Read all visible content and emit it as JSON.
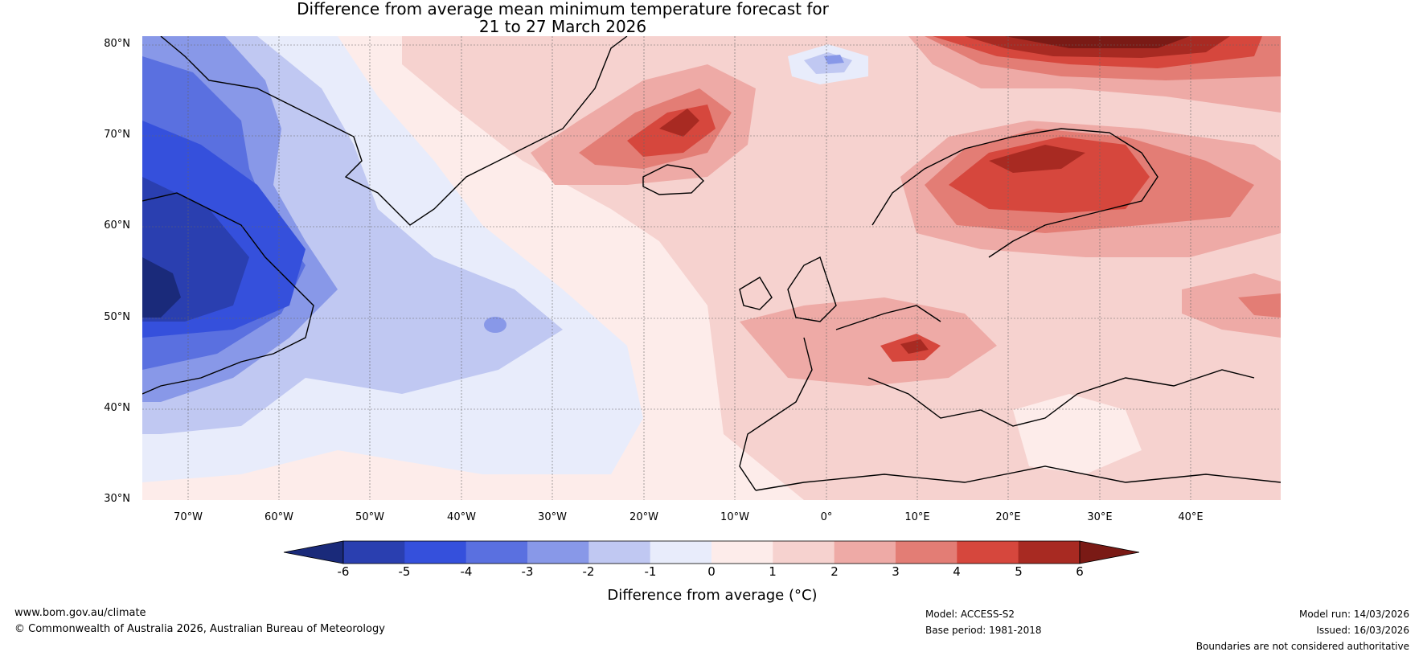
{
  "title_line1": "Difference from average mean minimum temperature forecast for",
  "title_line2": "21 to 27 March 2026",
  "lat_labels": [
    "80°N",
    "70°N",
    "60°N",
    "50°N",
    "40°N",
    "30°N"
  ],
  "lon_labels": [
    "70°W",
    "60°W",
    "50°W",
    "40°W",
    "30°W",
    "20°W",
    "10°W",
    "0°",
    "10°E",
    "20°E",
    "30°E",
    "40°E"
  ],
  "colorbar": {
    "ticks": [
      "-6",
      "-5",
      "-4",
      "-3",
      "-2",
      "-1",
      "0",
      "1",
      "2",
      "3",
      "4",
      "5",
      "6"
    ],
    "colors": [
      "#1a2a7a",
      "#2a3fb0",
      "#3550dc",
      "#5a70e0",
      "#8898e8",
      "#c0c8f2",
      "#e8ecfb",
      "#fdecea",
      "#f6d2cf",
      "#eeaaa6",
      "#e37d75",
      "#d6473d",
      "#a82a22",
      "#7a1a15"
    ],
    "label": "Difference from average (°C)"
  },
  "footer": {
    "website": "www.bom.gov.au/climate",
    "copyright": "© Commonwealth of Australia 2026, Australian Bureau of Meteorology",
    "model": "Model: ACCESS-S2",
    "base_period": "Base period: 1981-2018",
    "model_run": "Model run: 14/03/2026",
    "issued": "Issued: 16/03/2026",
    "disclaimer": "Boundaries are not considered authoritative"
  }
}
